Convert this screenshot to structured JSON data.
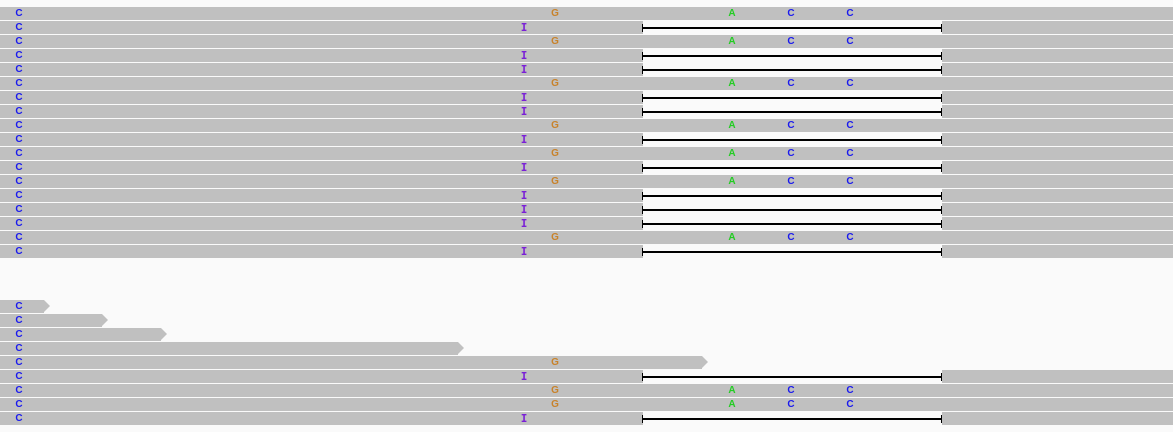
{
  "track": {
    "colors": {
      "read": "#c0c0c0",
      "gap": "#000000",
      "A": "#22cc22",
      "C": "#1a1aee",
      "G": "#c8822a",
      "insertion": "#7a1fd6"
    },
    "reads": [
      {
        "kind": "variant"
      },
      {
        "kind": "gap"
      },
      {
        "kind": "variant"
      },
      {
        "kind": "gap"
      },
      {
        "kind": "gap"
      },
      {
        "kind": "variant"
      },
      {
        "kind": "gap"
      },
      {
        "kind": "gap"
      },
      {
        "kind": "variant"
      },
      {
        "kind": "gap"
      },
      {
        "kind": "variant"
      },
      {
        "kind": "gap"
      },
      {
        "kind": "variant"
      },
      {
        "kind": "gap"
      },
      {
        "kind": "gap"
      },
      {
        "kind": "gap"
      },
      {
        "kind": "variant"
      },
      {
        "kind": "gap"
      },
      {
        "kind": "short"
      },
      {
        "kind": "short"
      },
      {
        "kind": "short"
      },
      {
        "kind": "short"
      },
      {
        "kind": "partial"
      },
      {
        "kind": "gap"
      },
      {
        "kind": "variant"
      },
      {
        "kind": "variant"
      },
      {
        "kind": "gap"
      }
    ],
    "labels": {
      "C": "C",
      "G": "G",
      "A": "A",
      "I": "I"
    }
  }
}
